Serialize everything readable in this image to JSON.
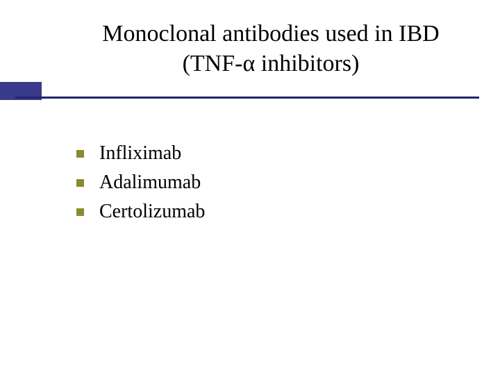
{
  "colors": {
    "accent": "#3a3a8a",
    "rule": "#242470",
    "bullet": "#8a8a30",
    "text": "#000000",
    "background": "#ffffff"
  },
  "typography": {
    "title_fontsize": 34,
    "bullet_fontsize": 28,
    "font_family": "Times New Roman"
  },
  "title": {
    "line1": "Monoclonal antibodies used in IBD",
    "line2": "(TNF-α inhibitors)"
  },
  "bullets": [
    {
      "label": "Infliximab"
    },
    {
      "label": "Adalimumab"
    },
    {
      "label": "Certolizumab"
    }
  ]
}
